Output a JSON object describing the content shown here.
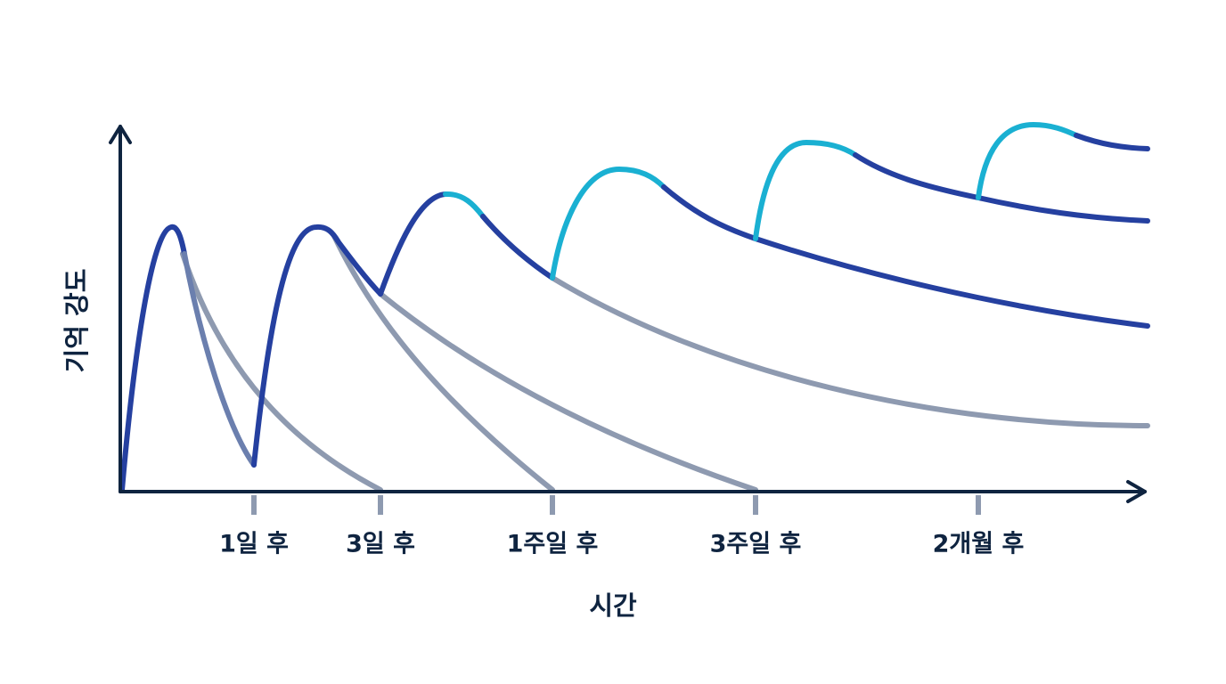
{
  "axes": {
    "y_label": "기억 강도",
    "x_label": "시간"
  },
  "ticks": [
    "1일 후",
    "3일 후",
    "1주일 후",
    "3주일 후",
    "2개월 후"
  ]
}
